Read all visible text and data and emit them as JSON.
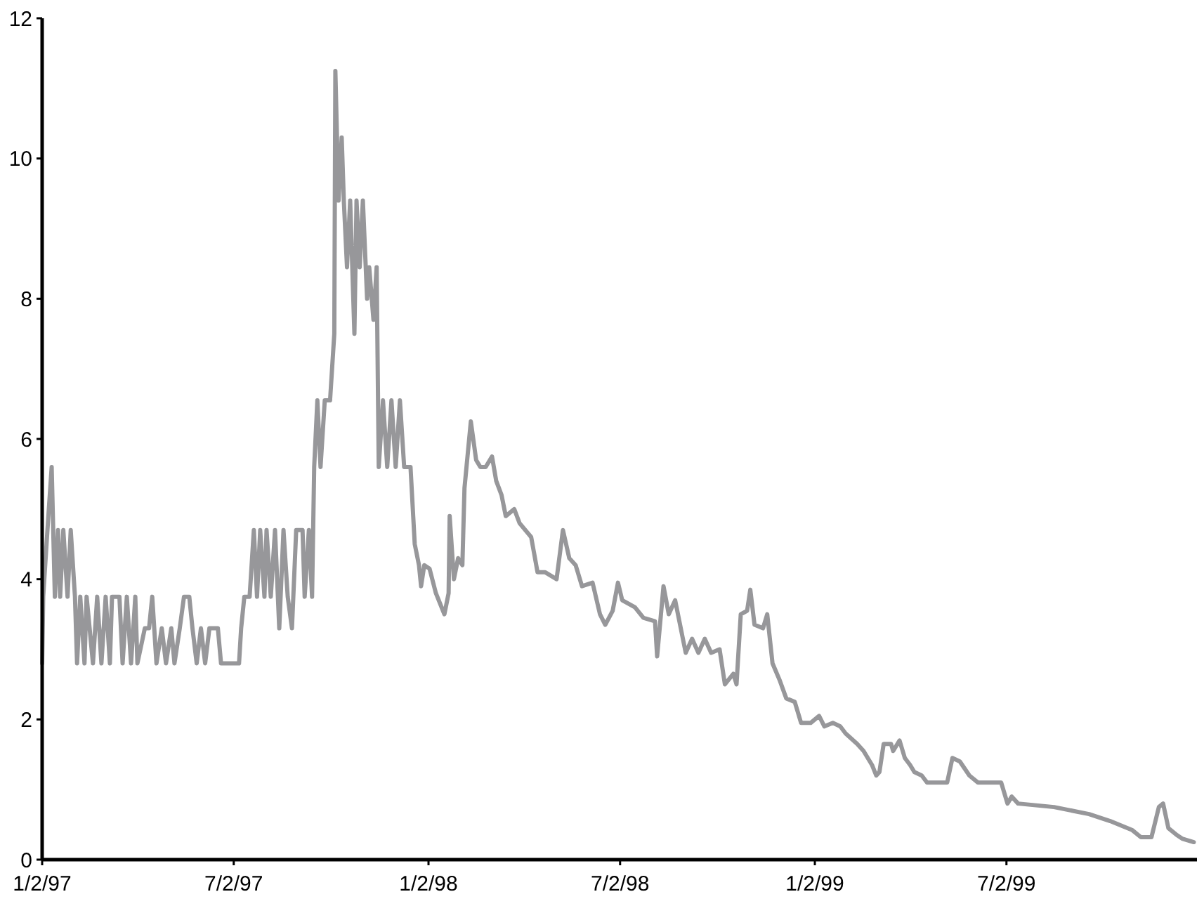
{
  "chart_data": {
    "type": "line",
    "xlim": [
      "1997-01-02",
      "1999-12-29"
    ],
    "ylim": [
      0,
      12
    ],
    "xticks": [
      {
        "value": "1997-01-02",
        "label": "1/2/97"
      },
      {
        "value": "1997-07-02",
        "label": "7/2/97"
      },
      {
        "value": "1998-01-02",
        "label": "1/2/98"
      },
      {
        "value": "1998-07-02",
        "label": "7/2/98"
      },
      {
        "value": "1999-01-02",
        "label": "1/2/99"
      },
      {
        "value": "1999-07-02",
        "label": "7/2/99"
      }
    ],
    "yticks": [
      0,
      2,
      4,
      6,
      8,
      10,
      12
    ],
    "grid": false,
    "marker": "none",
    "line_style": "solid",
    "series": [
      {
        "color": "#97979a",
        "x": [
          "1997-01-02",
          "1997-01-03",
          "1997-01-07",
          "1997-01-11",
          "1997-01-14",
          "1997-01-17",
          "1997-01-19",
          "1997-01-22",
          "1997-01-26",
          "1997-01-29",
          "1997-02-02",
          "1997-02-04",
          "1997-02-07",
          "1997-02-11",
          "1997-02-13",
          "1997-02-19",
          "1997-02-23",
          "1997-02-27",
          "1997-03-03",
          "1997-03-07",
          "1997-03-09",
          "1997-03-16",
          "1997-03-19",
          "1997-03-23",
          "1997-03-27",
          "1997-03-31",
          "1997-04-02",
          "1997-04-09",
          "1997-04-13",
          "1997-04-16",
          "1997-04-20",
          "1997-04-25",
          "1997-04-29",
          "1997-05-04",
          "1997-05-07",
          "1997-05-12",
          "1997-05-16",
          "1997-05-21",
          "1997-05-24",
          "1997-05-28",
          "1997-06-01",
          "1997-06-05",
          "1997-06-09",
          "1997-06-17",
          "1997-06-20",
          "1997-07-07",
          "1997-07-09",
          "1997-07-12",
          "1997-07-17",
          "1997-07-21",
          "1997-07-24",
          "1997-07-27",
          "1997-07-31",
          "1997-08-02",
          "1997-08-06",
          "1997-08-10",
          "1997-08-14",
          "1997-08-18",
          "1997-08-22",
          "1997-08-26",
          "1997-08-30",
          "1997-09-05",
          "1997-09-07",
          "1997-09-11",
          "1997-09-14",
          "1997-09-16",
          "1997-09-19",
          "1997-09-22",
          "1997-09-26",
          "1997-10-01",
          "1997-10-05",
          "1997-10-06",
          "1997-10-09",
          "1997-10-12",
          "1997-10-14",
          "1997-10-17",
          "1997-10-20",
          "1997-10-24",
          "1997-10-26",
          "1997-10-29",
          "1997-11-01",
          "1997-11-05",
          "1997-11-07",
          "1997-11-11",
          "1997-11-14",
          "1997-11-16",
          "1997-11-20",
          "1997-11-24",
          "1997-11-28",
          "1997-12-02",
          "1997-12-06",
          "1997-12-10",
          "1997-12-16",
          "1997-12-20",
          "1997-12-24",
          "1997-12-26",
          "1997-12-29",
          "1998-01-03",
          "1998-01-09",
          "1998-01-17",
          "1998-01-21",
          "1998-01-22",
          "1998-01-26",
          "1998-01-30",
          "1998-02-03",
          "1998-02-05",
          "1998-02-11",
          "1998-02-16",
          "1998-02-20",
          "1998-02-25",
          "1998-03-03",
          "1998-03-07",
          "1998-03-12",
          "1998-03-16",
          "1998-03-24",
          "1998-03-29",
          "1998-04-09",
          "1998-04-15",
          "1998-04-22",
          "1998-05-03",
          "1998-05-09",
          "1998-05-15",
          "1998-05-21",
          "1998-05-27",
          "1998-06-06",
          "1998-06-13",
          "1998-06-18",
          "1998-06-25",
          "1998-06-30",
          "1998-07-04",
          "1998-07-16",
          "1998-07-24",
          "1998-08-04",
          "1998-08-06",
          "1998-08-12",
          "1998-08-17",
          "1998-08-23",
          "1998-09-02",
          "1998-09-08",
          "1998-09-14",
          "1998-09-20",
          "1998-09-26",
          "1998-10-04",
          "1998-10-09",
          "1998-10-17",
          "1998-10-20",
          "1998-10-24",
          "1998-10-30",
          "1998-11-02",
          "1998-11-06",
          "1998-11-14",
          "1998-11-18",
          "1998-11-23",
          "1998-11-30",
          "1998-12-06",
          "1998-12-14",
          "1998-12-20",
          "1998-12-29",
          "1999-01-06",
          "1999-01-11",
          "1999-01-19",
          "1999-01-26",
          "1999-01-31",
          "1999-02-11",
          "1999-02-17",
          "1999-02-25",
          "1999-03-01",
          "1999-03-04",
          "1999-03-08",
          "1999-03-15",
          "1999-03-17",
          "1999-03-23",
          "1999-03-28",
          "1999-04-02",
          "1999-04-06",
          "1999-04-13",
          "1999-04-18",
          "1999-05-07",
          "1999-05-12",
          "1999-05-19",
          "1999-05-28",
          "1999-06-05",
          "1999-06-27",
          "1999-07-03",
          "1999-07-07",
          "1999-07-13",
          "1999-08-16",
          "1999-09-18",
          "1999-10-08",
          "1999-10-29",
          "1999-11-06",
          "1999-11-16",
          "1999-11-23",
          "1999-11-27",
          "1999-12-02",
          "1999-12-10",
          "1999-12-15",
          "1999-12-26"
        ],
        "values": [
          2.8,
          3.75,
          4.7,
          5.6,
          3.75,
          4.7,
          3.75,
          4.7,
          3.75,
          4.7,
          3.75,
          2.8,
          3.75,
          2.8,
          3.75,
          2.8,
          3.75,
          2.8,
          3.75,
          2.8,
          3.75,
          3.75,
          2.8,
          3.75,
          2.8,
          3.75,
          2.8,
          3.3,
          3.3,
          3.75,
          2.8,
          3.3,
          2.8,
          3.3,
          2.8,
          3.3,
          3.75,
          3.75,
          3.3,
          2.8,
          3.3,
          2.8,
          3.3,
          3.3,
          2.8,
          2.8,
          3.3,
          3.75,
          3.75,
          4.7,
          3.75,
          4.7,
          3.75,
          4.7,
          3.75,
          4.7,
          3.3,
          4.7,
          3.75,
          3.3,
          4.7,
          4.7,
          3.75,
          4.7,
          3.75,
          5.6,
          6.55,
          5.6,
          6.55,
          6.55,
          7.5,
          11.25,
          9.4,
          10.3,
          9.4,
          8.45,
          9.4,
          7.5,
          9.4,
          8.45,
          9.4,
          8.0,
          8.45,
          7.7,
          8.45,
          5.6,
          6.55,
          5.6,
          6.55,
          5.6,
          6.55,
          5.6,
          5.6,
          4.5,
          4.2,
          3.9,
          4.2,
          4.15,
          3.8,
          3.5,
          3.8,
          4.9,
          4.0,
          4.3,
          4.2,
          5.3,
          6.25,
          5.7,
          5.6,
          5.6,
          5.75,
          5.4,
          5.2,
          4.9,
          5.0,
          4.8,
          4.6,
          4.1,
          4.1,
          4.0,
          4.7,
          4.3,
          4.2,
          3.9,
          3.95,
          3.5,
          3.35,
          3.55,
          3.95,
          3.7,
          3.6,
          3.45,
          3.4,
          2.9,
          3.9,
          3.5,
          3.7,
          2.95,
          3.15,
          2.95,
          3.15,
          2.95,
          3.0,
          2.5,
          2.65,
          2.5,
          3.5,
          3.55,
          3.85,
          3.35,
          3.3,
          3.5,
          2.8,
          2.55,
          2.3,
          2.25,
          1.95,
          1.95,
          2.05,
          1.9,
          1.95,
          1.9,
          1.8,
          1.65,
          1.55,
          1.35,
          1.2,
          1.25,
          1.65,
          1.65,
          1.55,
          1.7,
          1.45,
          1.35,
          1.25,
          1.2,
          1.1,
          1.1,
          1.45,
          1.4,
          1.2,
          1.1,
          1.1,
          0.8,
          0.9,
          0.8,
          0.75,
          0.65,
          0.55,
          0.42,
          0.32,
          0.32,
          0.75,
          0.8,
          0.45,
          0.35,
          0.3,
          0.25
        ]
      }
    ]
  }
}
